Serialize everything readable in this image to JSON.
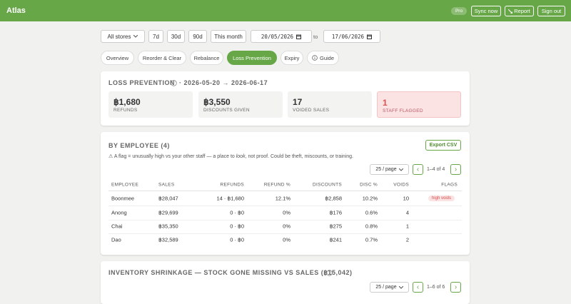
{
  "header": {
    "title": "Atlas",
    "badge": "Pro",
    "buttons": [
      "Sync now",
      "Report",
      "Sign out"
    ]
  },
  "filters": {
    "store": "All stores",
    "ranges": [
      "7d",
      "30d",
      "90d",
      "This month"
    ],
    "from": "20/05/2026",
    "to_label": "to",
    "to": "17/06/2026"
  },
  "tabs": [
    "Overview",
    "Reorder & Clear",
    "Rebalance",
    "Loss Prevention",
    "Expiry",
    "Guide"
  ],
  "loss_prevention": {
    "title": "LOSS PREVENTION",
    "period": "· 2026-05-20 → 2026-06-17",
    "stats": [
      {
        "value": "฿1,680",
        "label": "REFUNDS"
      },
      {
        "value": "฿3,550",
        "label": "DISCOUNTS GIVEN"
      },
      {
        "value": "17",
        "label": "VOIDED SALES"
      },
      {
        "value": "1",
        "label": "STAFF FLAGGED"
      }
    ]
  },
  "by_employee": {
    "title": "BY EMPLOYEE (4)",
    "export": "Export CSV",
    "note": [
      "⚠ A flag = unusually high vs your other staff — a place to ",
      "look",
      ", not proof. Could be theft, miscounts, or training."
    ],
    "page_size": "25 / page",
    "prev": "‹",
    "range": "1–4 of 4",
    "next": "›",
    "columns": [
      "EMPLOYEE",
      "SALES",
      "REFUNDS",
      "REFUND %",
      "DISCOUNTS",
      "DISC %",
      "VOIDS",
      "FLAGS"
    ],
    "rows": [
      [
        "Boonmee",
        "฿28,047",
        "14 · ฿1,680",
        "12.1%",
        "฿2,858",
        "10.2%",
        "10",
        "high voids"
      ],
      [
        "Anong",
        "฿29,699",
        "0 · ฿0",
        "0%",
        "฿176",
        "0.6%",
        "4",
        null
      ],
      [
        "Chai",
        "฿35,350",
        "0 · ฿0",
        "0%",
        "฿275",
        "0.8%",
        "1",
        null
      ],
      [
        "Dao",
        "฿32,589",
        "0 · ฿0",
        "0%",
        "฿241",
        "0.7%",
        "2",
        null
      ]
    ]
  },
  "shrinkage": {
    "title": "INVENTORY SHRINKAGE — STOCK GONE MISSING VS SALES (฿15,042)",
    "page_size": "25 / page",
    "prev": "‹",
    "range": "1–6 of 6",
    "next": "›"
  }
}
